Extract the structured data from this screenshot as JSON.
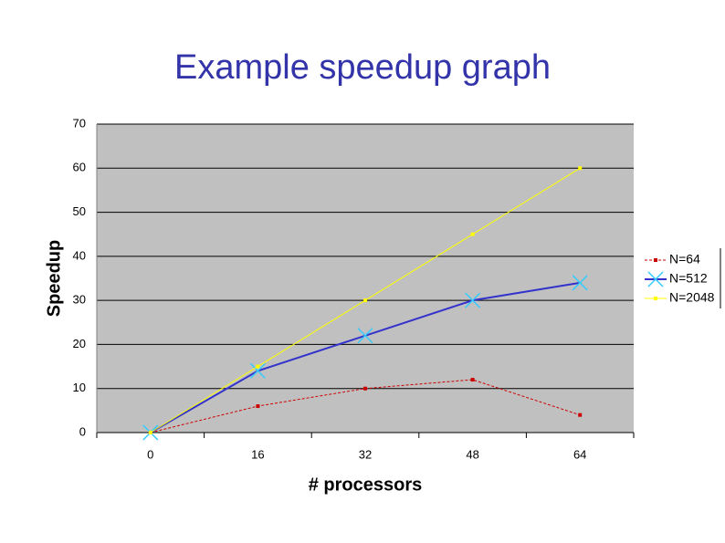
{
  "chart_data": {
    "type": "line",
    "title": "Example speedup graph",
    "x_label": "# processors",
    "y_label": "Speedup",
    "x": [
      0,
      16,
      32,
      48,
      64
    ],
    "xlim": [
      -8,
      72
    ],
    "xticks": [
      0,
      16,
      32,
      48,
      64
    ],
    "ylim": [
      0,
      70
    ],
    "yticks": [
      0,
      10,
      20,
      30,
      40,
      50,
      60,
      70
    ],
    "grid": true,
    "legend": "right",
    "series": [
      {
        "name": "N=64",
        "color": "#cc0000",
        "values": [
          0,
          6,
          10,
          12,
          4
        ]
      },
      {
        "name": "N=512",
        "color": "#3333cc",
        "values": [
          0,
          14,
          22,
          30,
          34
        ]
      },
      {
        "name": "N=2048",
        "color": "#ffff00",
        "values": [
          0,
          15,
          30,
          45,
          60
        ]
      }
    ]
  }
}
